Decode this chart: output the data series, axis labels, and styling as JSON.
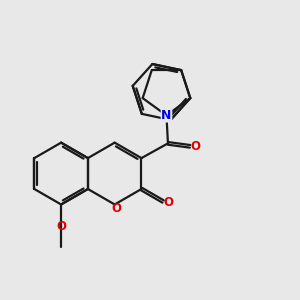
{
  "background_color": "#e8e8e8",
  "bond_color": "#1a1a1a",
  "N_color": "#0000ee",
  "O_color": "#dd0000",
  "line_width": 1.6,
  "figsize": [
    3.0,
    3.0
  ],
  "dpi": 100,
  "xlim": [
    0,
    10
  ],
  "ylim": [
    0,
    10
  ],
  "font_size": 8.5
}
